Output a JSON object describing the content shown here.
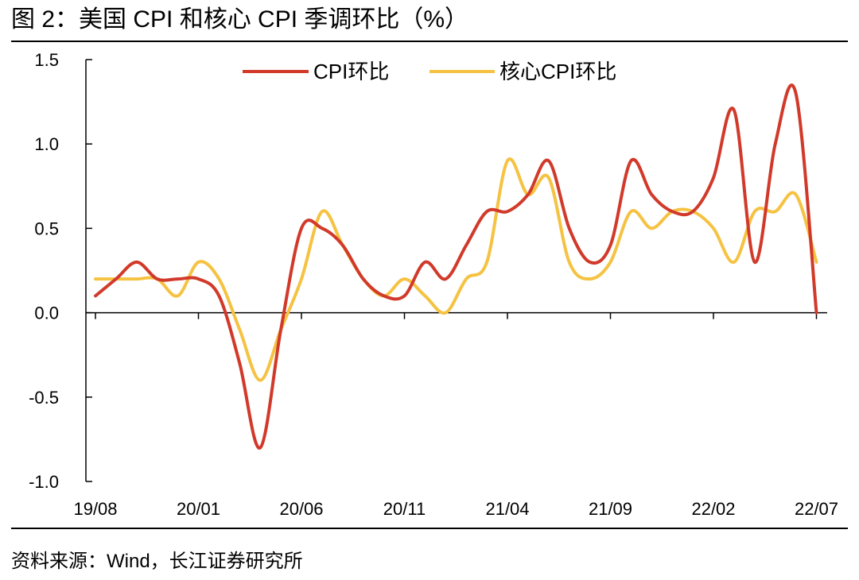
{
  "figure": {
    "title": "图 2：美国 CPI 和核心 CPI 季调环比（%）",
    "source": "资料来源：Wind，长江证券研究所"
  },
  "chart_data": {
    "type": "line",
    "x": [
      "19/08",
      "19/09",
      "19/10",
      "19/11",
      "19/12",
      "20/01",
      "20/02",
      "20/03",
      "20/04",
      "20/05",
      "20/06",
      "20/07",
      "20/08",
      "20/09",
      "20/10",
      "20/11",
      "20/12",
      "21/01",
      "21/02",
      "21/03",
      "21/04",
      "21/05",
      "21/06",
      "21/07",
      "21/08",
      "21/09",
      "21/10",
      "21/11",
      "21/12",
      "22/01",
      "22/02",
      "22/03",
      "22/04",
      "22/05",
      "22/06",
      "22/07"
    ],
    "xticks": [
      "19/08",
      "20/01",
      "20/06",
      "20/11",
      "21/04",
      "21/09",
      "22/02",
      "22/07"
    ],
    "ylim": [
      -1.0,
      1.5
    ],
    "yticks": [
      "-1.0",
      "-0.5",
      "0.0",
      "0.5",
      "1.0",
      "1.5"
    ],
    "legend_position": "top-center",
    "series": [
      {
        "name": "CPI环比",
        "color": "#d13a2a",
        "values": [
          0.1,
          0.2,
          0.3,
          0.2,
          0.2,
          0.2,
          0.1,
          -0.3,
          -0.8,
          -0.1,
          0.5,
          0.5,
          0.4,
          0.2,
          0.1,
          0.1,
          0.3,
          0.2,
          0.4,
          0.6,
          0.6,
          0.7,
          0.9,
          0.5,
          0.3,
          0.4,
          0.9,
          0.7,
          0.6,
          0.6,
          0.8,
          1.2,
          0.3,
          1.0,
          1.3,
          0.0
        ]
      },
      {
        "name": "核心CPI环比",
        "color": "#f5c242",
        "values": [
          0.2,
          0.2,
          0.2,
          0.2,
          0.1,
          0.3,
          0.2,
          -0.1,
          -0.4,
          -0.1,
          0.2,
          0.6,
          0.4,
          0.2,
          0.1,
          0.2,
          0.1,
          0.0,
          0.2,
          0.3,
          0.9,
          0.7,
          0.8,
          0.3,
          0.2,
          0.3,
          0.6,
          0.5,
          0.6,
          0.6,
          0.5,
          0.3,
          0.6,
          0.6,
          0.7,
          0.3
        ]
      }
    ]
  }
}
